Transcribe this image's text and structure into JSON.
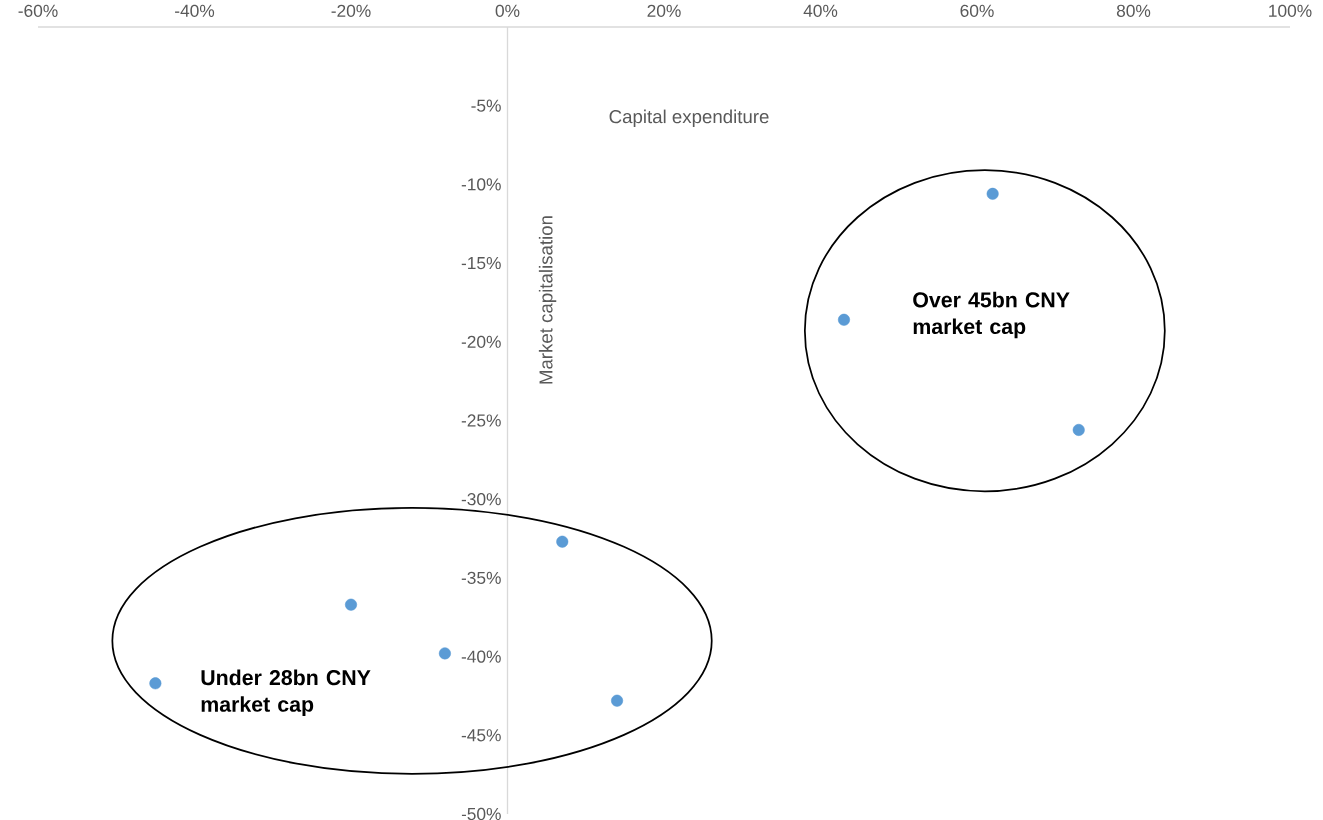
{
  "chart_data": {
    "type": "scatter",
    "xlabel": "Capital expenditure",
    "ylabel": "Market capitalisation",
    "x": [
      62,
      43,
      73,
      7,
      -20,
      -8,
      -45,
      14
    ],
    "values": [
      -10.6,
      -18.6,
      -25.6,
      -32.7,
      -36.7,
      -39.8,
      -41.7,
      -42.8
    ],
    "color": "#5b9bd5",
    "marker": "circle",
    "xlim": [
      -60,
      100
    ],
    "ylim": [
      -50,
      0
    ],
    "xticks": [
      {
        "value": -60,
        "label": "-60%"
      },
      {
        "value": -40,
        "label": "-40%"
      },
      {
        "value": -20,
        "label": "-20%"
      },
      {
        "value": 0,
        "label": "0%"
      },
      {
        "value": 20,
        "label": "20%"
      },
      {
        "value": 40,
        "label": "40%"
      },
      {
        "value": 60,
        "label": "60%"
      },
      {
        "value": 80,
        "label": "80%"
      },
      {
        "value": 100,
        "label": "100%"
      }
    ],
    "yticks": [
      {
        "value": -5,
        "label": "-5%"
      },
      {
        "value": -10,
        "label": "-10%"
      },
      {
        "value": -15,
        "label": "-15%"
      },
      {
        "value": -20,
        "label": "-20%"
      },
      {
        "value": -25,
        "label": "-25%"
      },
      {
        "value": -30,
        "label": "-30%"
      },
      {
        "value": -35,
        "label": "-35%"
      },
      {
        "value": -40,
        "label": "-40%"
      },
      {
        "value": -45,
        "label": "-45%"
      },
      {
        "value": -50,
        "label": "-50%"
      }
    ],
    "annotations": [
      "Over 45bn CNY market cap",
      "Under 28bn CNY market cap"
    ]
  }
}
